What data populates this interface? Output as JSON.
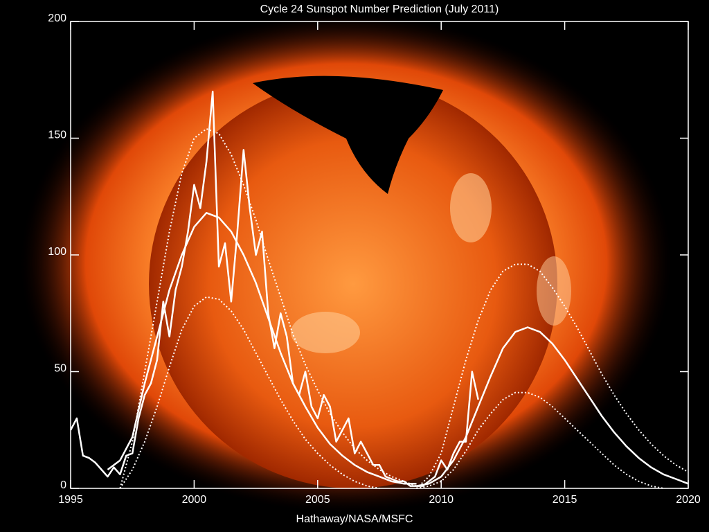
{
  "chart_data": {
    "type": "line",
    "title": "Cycle 24 Sunspot Number Prediction (July 2011)",
    "xlabel": "Hathaway/NASA/MSFC",
    "xlim": [
      1995,
      2020
    ],
    "ylim": [
      0,
      200
    ],
    "xticks": [
      1995,
      2000,
      2005,
      2010,
      2015,
      2020
    ],
    "yticks": [
      0,
      50,
      100,
      150,
      200
    ],
    "series": [
      {
        "style": "solid",
        "color": "#ffffff",
        "width": 2.5,
        "x": [
          1995,
          1995.25,
          1995.5,
          1995.75,
          1996,
          1996.25,
          1996.5,
          1996.75,
          1997,
          1997.25,
          1997.5,
          1997.75,
          1998,
          1998.25,
          1998.5,
          1998.75,
          1999,
          1999.25,
          1999.5,
          1999.75,
          2000,
          2000.25,
          2000.5,
          2000.75,
          2001,
          2001.25,
          2001.5,
          2001.75,
          2002,
          2002.25,
          2002.5,
          2002.75,
          2003,
          2003.25,
          2003.5,
          2003.75,
          2004,
          2004.25,
          2004.5,
          2004.75,
          2005,
          2005.25,
          2005.5,
          2005.75,
          2006,
          2006.25,
          2006.5,
          2006.75,
          2007,
          2007.25,
          2007.5,
          2007.75,
          2008,
          2008.25,
          2008.5,
          2008.75,
          2009,
          2009.25,
          2009.5,
          2009.75,
          2010,
          2010.25,
          2010.5,
          2010.75,
          2011,
          2011.25,
          2011.5
        ],
        "values": [
          25,
          30,
          14,
          13,
          11,
          8,
          5,
          9,
          6,
          14,
          15,
          30,
          40,
          45,
          55,
          80,
          65,
          85,
          95,
          110,
          130,
          120,
          140,
          170,
          95,
          105,
          80,
          110,
          145,
          120,
          100,
          110,
          75,
          60,
          75,
          65,
          45,
          40,
          50,
          35,
          30,
          40,
          35,
          20,
          25,
          30,
          15,
          20,
          15,
          10,
          10,
          5,
          4,
          3,
          3,
          1,
          1,
          1,
          3,
          5,
          12,
          8,
          15,
          20,
          20,
          50,
          38
        ]
      },
      {
        "style": "solid",
        "color": "#ffffff",
        "width": 2.5,
        "x": [
          1996.5,
          1997,
          1997.5,
          1998,
          1998.5,
          1999,
          1999.5,
          2000,
          2000.5,
          2001,
          2001.5,
          2002,
          2002.5,
          2003,
          2003.5,
          2004,
          2004.5,
          2005,
          2005.5,
          2006,
          2006.5,
          2007,
          2007.5,
          2008,
          2008.5,
          2009
        ],
        "values": [
          8,
          12,
          22,
          45,
          65,
          85,
          100,
          112,
          118,
          116,
          110,
          100,
          88,
          73,
          58,
          45,
          35,
          26,
          19,
          14,
          10,
          7,
          5,
          3,
          2,
          2
        ]
      },
      {
        "style": "solid",
        "color": "#ffffff",
        "width": 2.5,
        "x": [
          2009,
          2009.5,
          2010,
          2010.5,
          2011,
          2011.5,
          2012,
          2012.5,
          2013,
          2013.5,
          2014,
          2014.5,
          2015,
          2015.5,
          2016,
          2016.5,
          2017,
          2017.5,
          2018,
          2018.5,
          2019,
          2019.5,
          2020
        ],
        "values": [
          1,
          2,
          5,
          12,
          22,
          35,
          48,
          60,
          67,
          69,
          67,
          62,
          55,
          47,
          39,
          31,
          24,
          18,
          13,
          9,
          6,
          4,
          2
        ]
      },
      {
        "style": "dotted",
        "color": "#ffffff",
        "width": 2,
        "x": [
          1997,
          1997.5,
          1998,
          1998.5,
          1999,
          1999.5,
          2000,
          2000.5,
          2001,
          2001.5,
          2002,
          2002.5,
          2003,
          2003.5,
          2004,
          2004.5,
          2005,
          2005.5,
          2006,
          2006.5,
          2007,
          2007.5,
          2008,
          2008.5,
          2009
        ],
        "values": [
          0,
          20,
          50,
          80,
          110,
          135,
          150,
          154,
          152,
          143,
          130,
          115,
          98,
          82,
          66,
          53,
          42,
          32,
          24,
          17,
          12,
          8,
          5,
          3,
          1
        ]
      },
      {
        "style": "dotted",
        "color": "#ffffff",
        "width": 2,
        "x": [
          1997,
          1997.5,
          1998,
          1998.5,
          1999,
          1999.5,
          2000,
          2000.5,
          2001,
          2001.5,
          2002,
          2002.5,
          2003,
          2003.5,
          2004,
          2004.5,
          2005,
          2005.5,
          2006,
          2006.5,
          2007,
          2007.5
        ],
        "values": [
          0,
          8,
          20,
          35,
          52,
          68,
          78,
          82,
          81,
          76,
          68,
          58,
          48,
          38,
          29,
          21,
          15,
          10,
          6,
          3,
          1,
          0
        ]
      },
      {
        "style": "dotted",
        "color": "#ffffff",
        "width": 2,
        "x": [
          2009,
          2009.5,
          2010,
          2010.5,
          2011,
          2011.5,
          2012,
          2012.5,
          2013,
          2013.5,
          2014,
          2014.5,
          2015,
          2015.5,
          2016,
          2016.5,
          2017,
          2017.5,
          2018,
          2018.5,
          2019,
          2019.5,
          2020
        ],
        "values": [
          0,
          5,
          15,
          35,
          55,
          72,
          85,
          93,
          96,
          96,
          93,
          86,
          78,
          69,
          59,
          49,
          40,
          32,
          25,
          19,
          14,
          10,
          7
        ]
      },
      {
        "style": "dotted",
        "color": "#ffffff",
        "width": 2,
        "x": [
          2009,
          2009.5,
          2010,
          2010.5,
          2011,
          2011.5,
          2012,
          2012.5,
          2013,
          2013.5,
          2014,
          2014.5,
          2015,
          2015.5,
          2016,
          2016.5,
          2017,
          2017.5,
          2018,
          2018.5,
          2019
        ],
        "values": [
          0,
          1,
          3,
          8,
          16,
          25,
          32,
          38,
          41,
          41,
          39,
          35,
          30,
          25,
          20,
          15,
          10,
          6,
          3,
          1,
          0
        ]
      }
    ]
  }
}
